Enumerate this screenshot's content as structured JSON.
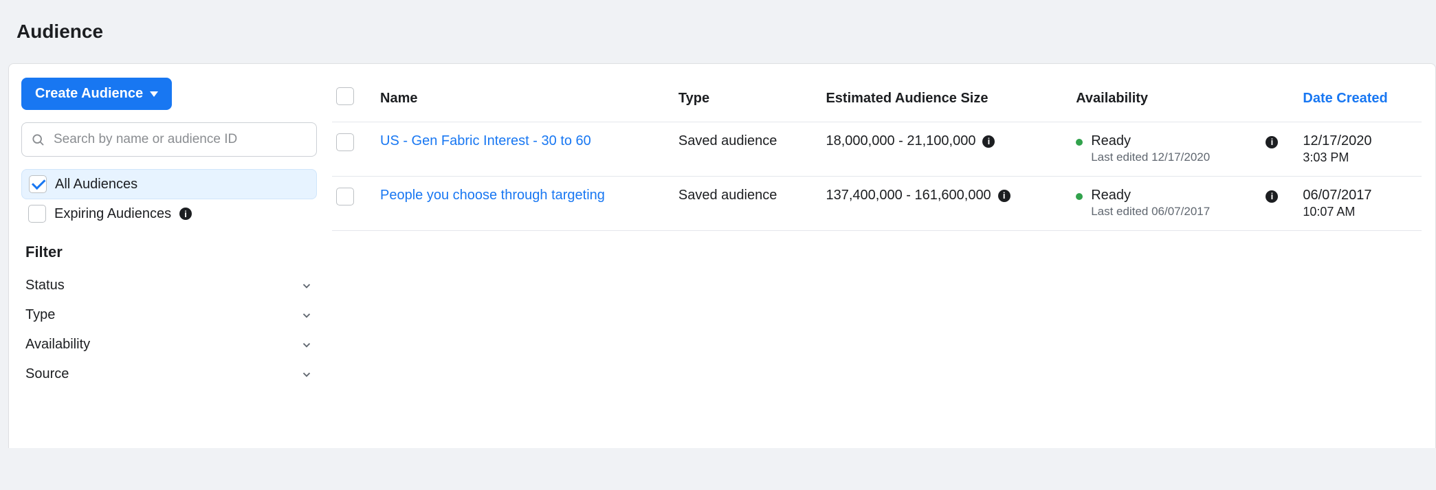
{
  "page": {
    "title": "Audience"
  },
  "sidebar": {
    "create_button_label": "Create Audience",
    "search_placeholder": "Search by name or audience ID",
    "quick_filters": {
      "all_audiences": {
        "label": "All Audiences",
        "checked": true
      },
      "expiring_audiences": {
        "label": "Expiring Audiences",
        "checked": false
      }
    },
    "filter_heading": "Filter",
    "filters": {
      "status": "Status",
      "type": "Type",
      "availability": "Availability",
      "source": "Source"
    }
  },
  "table": {
    "columns": {
      "name": "Name",
      "type": "Type",
      "size": "Estimated Audience Size",
      "availability": "Availability",
      "date_created": "Date Created"
    },
    "rows": [
      {
        "name": "US - Gen Fabric Interest - 30 to 60",
        "type": "Saved audience",
        "size": "18,000,000 - 21,100,000",
        "availability_status": "Ready",
        "availability_sub": "Last edited 12/17/2020",
        "date": "12/17/2020",
        "time": "3:03 PM"
      },
      {
        "name": "People you choose through targeting",
        "type": "Saved audience",
        "size": "137,400,000 - 161,600,000",
        "availability_status": "Ready",
        "availability_sub": "Last edited 06/07/2017",
        "date": "06/07/2017",
        "time": "10:07 AM"
      }
    ]
  },
  "colors": {
    "primary": "#1877f2",
    "status_green": "#31a24c",
    "page_bg": "#f0f2f5",
    "text": "#1c1e21",
    "muted": "#606770",
    "border": "#e4e6eb"
  }
}
